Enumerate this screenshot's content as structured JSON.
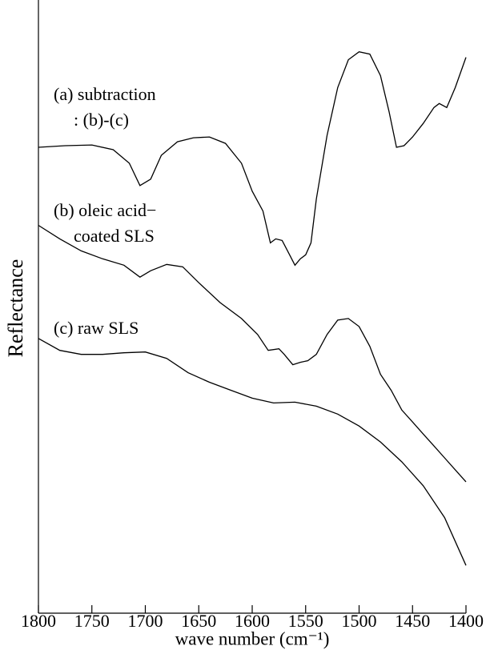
{
  "chart_data": {
    "type": "line",
    "xlabel": "wave number (cm⁻¹)",
    "ylabel": "Reflectance",
    "annotations": [
      "(a) subtraction",
      ": (b)-(c)",
      "(b) oleic acid−",
      "coated SLS",
      "(c) raw SLS"
    ],
    "xlim": [
      1800,
      1400
    ],
    "xticks": [
      1800,
      1750,
      1700,
      1650,
      1600,
      1550,
      1500,
      1450,
      1400
    ],
    "ylim": [
      0,
      77
    ],
    "color": "#000000",
    "series": [
      {
        "x": [
          1800,
          1775,
          1750,
          1730,
          1715,
          1705,
          1695,
          1685,
          1670,
          1655,
          1640,
          1625,
          1610,
          1600,
          1590,
          1583,
          1578,
          1572,
          1565,
          1560,
          1555,
          1550,
          1545,
          1540,
          1530,
          1520,
          1510,
          1500,
          1490,
          1480,
          1472,
          1465,
          1458,
          1450,
          1440,
          1430,
          1425,
          1418,
          1410,
          1400
        ],
        "values": [
          58.5,
          58.7,
          58.8,
          58.2,
          56.5,
          53.7,
          54.5,
          57.5,
          59.2,
          59.7,
          59.8,
          59,
          56.5,
          53,
          50.5,
          46.5,
          47,
          46.8,
          45,
          43.7,
          44.5,
          45,
          46.5,
          52,
          60,
          66,
          69.5,
          70.5,
          70.2,
          67.5,
          63,
          58.5,
          58.7,
          59.8,
          61.5,
          63.5,
          64,
          63.5,
          66,
          69.8
        ]
      },
      {
        "x": [
          1800,
          1780,
          1760,
          1740,
          1720,
          1705,
          1695,
          1680,
          1665,
          1650,
          1630,
          1610,
          1595,
          1585,
          1575,
          1570,
          1562,
          1555,
          1548,
          1540,
          1530,
          1520,
          1510,
          1500,
          1490,
          1480,
          1470,
          1460,
          1450,
          1440,
          1430,
          1420,
          1410,
          1400
        ],
        "values": [
          48.7,
          47,
          45.5,
          44.5,
          43.7,
          42.2,
          43,
          43.8,
          43.5,
          41.5,
          39,
          37,
          35,
          33,
          33.2,
          32.5,
          31.2,
          31.5,
          31.7,
          32.5,
          35,
          36.8,
          37,
          36,
          33.5,
          30,
          28,
          25.5,
          24,
          22.5,
          21,
          19.5,
          18,
          16.5
        ]
      },
      {
        "x": [
          1800,
          1780,
          1760,
          1740,
          1720,
          1700,
          1680,
          1660,
          1640,
          1620,
          1600,
          1580,
          1560,
          1540,
          1520,
          1500,
          1480,
          1460,
          1440,
          1420,
          1400
        ],
        "values": [
          34.5,
          33,
          32.5,
          32.5,
          32.7,
          32.8,
          32,
          30.2,
          29,
          28,
          27,
          26.4,
          26.5,
          26,
          25,
          23.5,
          21.5,
          19,
          16,
          12,
          6
        ]
      }
    ]
  }
}
